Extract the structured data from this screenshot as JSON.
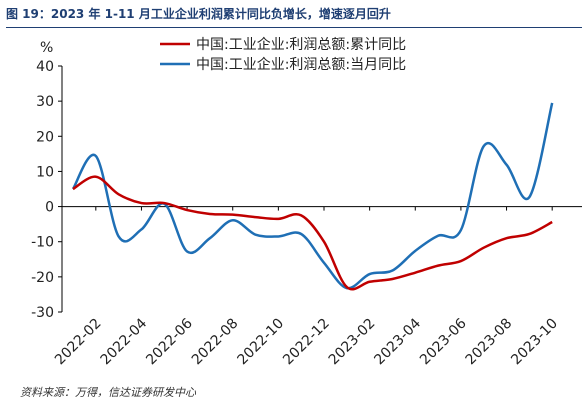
{
  "figure_title": "图 19：2023 年 1-11 月工业企业利润累计同比负增长，增速逐月回升",
  "source": "资料来源：万得，信达证券研发中心",
  "colors": {
    "series_1": "#c00000",
    "series_2": "#1f6fb5",
    "title": "#1f3f73"
  },
  "chart_data": {
    "type": "line",
    "unit_label": "%",
    "ylim": [
      -30,
      40
    ],
    "yticks": [
      -30,
      -20,
      -10,
      0,
      10,
      20,
      30,
      40
    ],
    "grid": false,
    "legend_position": "top-center",
    "x": [
      "2022-01",
      "2022-02",
      "2022-03",
      "2022-04",
      "2022-05",
      "2022-06",
      "2022-07",
      "2022-08",
      "2022-09",
      "2022-10",
      "2022-11",
      "2022-12",
      "2023-01",
      "2023-02",
      "2023-03",
      "2023-04",
      "2023-05",
      "2023-06",
      "2023-07",
      "2023-08",
      "2023-09",
      "2023-10",
      "2023-11"
    ],
    "tick_labels": [
      "2022-02",
      "2022-04",
      "2022-06",
      "2022-08",
      "2022-10",
      "2022-12",
      "2023-02",
      "2023-04",
      "2023-06",
      "2023-08",
      "2023-10"
    ],
    "series": [
      {
        "name": "中国:工业企业:利润总额:累计同比",
        "values": [
          5.0,
          8.5,
          3.5,
          1.0,
          1.0,
          -1.0,
          -2.1,
          -2.3,
          -3.0,
          -3.5,
          -2.5,
          -10.0,
          -22.9,
          -21.4,
          -20.6,
          -18.8,
          -16.8,
          -15.5,
          -11.7,
          -9.0,
          -7.8,
          -4.4,
          null
        ]
      },
      {
        "name": "中国:工业企业:利润总额:当月同比",
        "values": [
          5.0,
          14.4,
          -8.5,
          -6.5,
          0.8,
          -12.8,
          -9.0,
          -3.9,
          -8.0,
          -8.5,
          -7.8,
          -16.0,
          -23.2,
          -19.2,
          -18.2,
          -12.6,
          -8.3,
          -6.7,
          17.2,
          11.9,
          2.7,
          29.5,
          null
        ]
      }
    ]
  }
}
